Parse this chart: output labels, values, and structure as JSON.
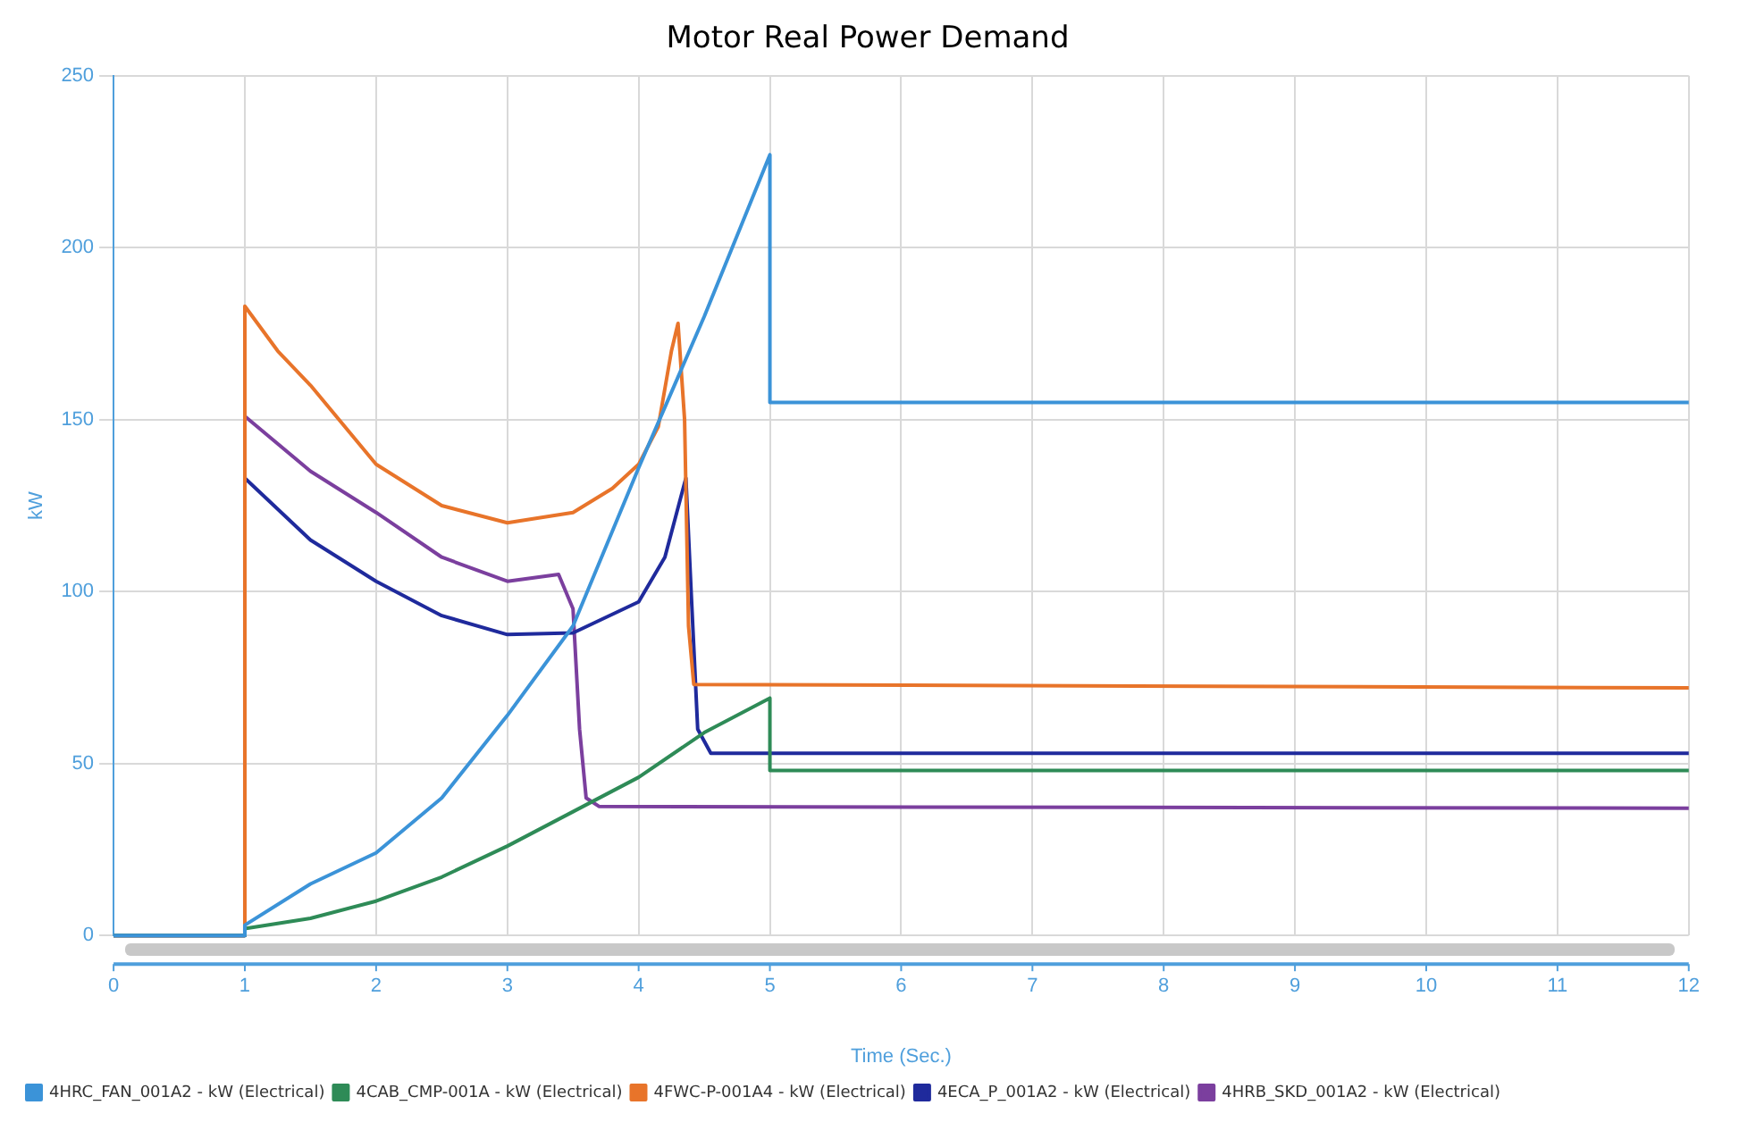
{
  "chart_data": {
    "type": "line",
    "title": "Motor Real Power Demand",
    "xlabel": "Time (Sec.)",
    "ylabel": "kW",
    "xlim": [
      0,
      12
    ],
    "xticks": [
      0,
      1,
      2,
      3,
      4,
      5,
      6,
      7,
      8,
      9,
      10,
      11,
      12
    ],
    "ylim": [
      0,
      250
    ],
    "yticks": [
      0,
      50,
      100,
      150,
      200,
      250
    ],
    "grid": true,
    "legend": "bottom",
    "marker": "none",
    "line_style": "solid",
    "series": [
      {
        "name": "4HRC_FAN_001A2 - kW (Electrical)",
        "color": "#3b93d8",
        "x": [
          0,
          1,
          1,
          1.5,
          2,
          2.5,
          3,
          3.5,
          4,
          4.5,
          5,
          5,
          12
        ],
        "values": [
          0,
          0,
          3,
          15,
          24,
          40,
          64,
          90,
          136,
          180,
          227,
          155,
          155
        ]
      },
      {
        "name": "4CAB_CMP-001A - kW (Electrical)",
        "color": "#2e8b57",
        "x": [
          0,
          1,
          1,
          1.5,
          2,
          2.5,
          3,
          3.5,
          4,
          4.5,
          5,
          5,
          12
        ],
        "values": [
          0,
          0,
          2,
          5,
          10,
          17,
          26,
          36,
          46,
          59,
          69,
          48,
          48
        ]
      },
      {
        "name": "4FWC-P-001A4 - kW (Electrical)",
        "color": "#e8742a",
        "x": [
          0,
          1,
          1,
          1.25,
          1.5,
          2,
          2.5,
          3,
          3.5,
          3.8,
          4,
          4.15,
          4.25,
          4.3,
          4.35,
          4.38,
          4.42,
          12
        ],
        "values": [
          0,
          0,
          183,
          170,
          160,
          137,
          125,
          120,
          123,
          130,
          137,
          148,
          170,
          178,
          150,
          90,
          73,
          72
        ]
      },
      {
        "name": "4ECA_P_001A2 - kW (Electrical)",
        "color": "#1f2a9c",
        "x": [
          0,
          1,
          1,
          1.5,
          2,
          2.5,
          3,
          3.5,
          4,
          4.2,
          4.36,
          4.4,
          4.45,
          4.55,
          12
        ],
        "values": [
          0,
          0,
          133,
          115,
          103,
          93,
          87.5,
          88,
          97,
          110,
          133,
          100,
          60,
          53,
          53
        ]
      },
      {
        "name": "4HRB_SKD_001A2 - kW (Electrical)",
        "color": "#7b3f9e",
        "x": [
          0,
          1,
          1,
          1.5,
          2,
          2.5,
          3,
          3.39,
          3.5,
          3.55,
          3.6,
          3.7,
          12
        ],
        "values": [
          0,
          0,
          151,
          135,
          123,
          110,
          103,
          105,
          95,
          60,
          40,
          37.5,
          37
        ]
      }
    ]
  }
}
